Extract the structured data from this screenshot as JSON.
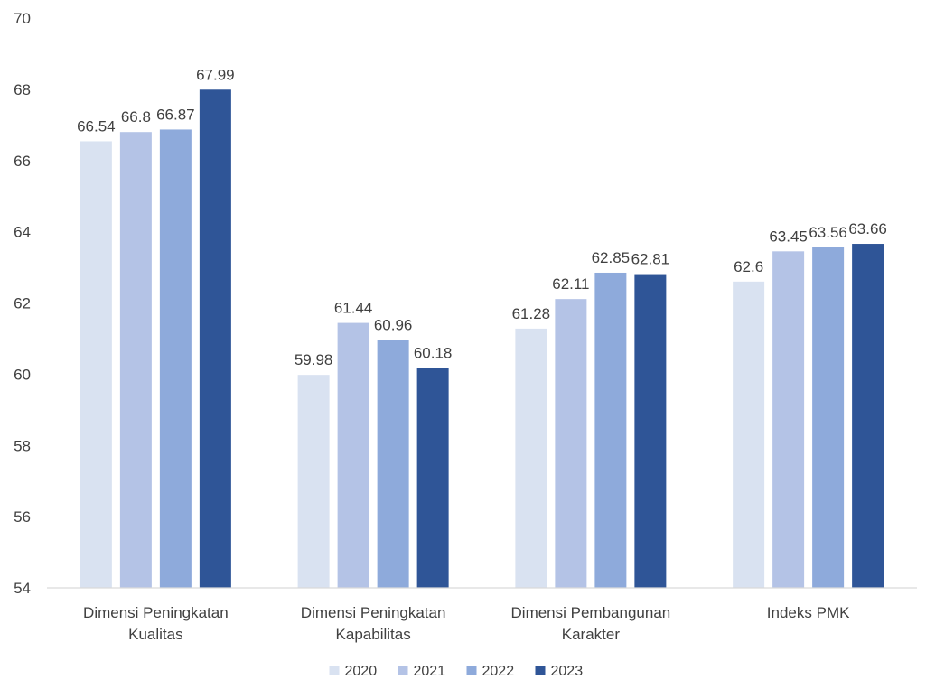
{
  "chart_data": {
    "type": "bar",
    "title": "",
    "xlabel": "",
    "ylabel": "",
    "ylim": [
      54,
      70
    ],
    "yticks": [
      54,
      56,
      58,
      60,
      62,
      64,
      66,
      68,
      70
    ],
    "grid": false,
    "legend_position": "bottom",
    "categories": [
      [
        "Dimensi Peningkatan",
        "Kualitas"
      ],
      [
        "Dimensi Peningkatan",
        "Kapabilitas"
      ],
      [
        "Dimensi Pembangunan",
        "Karakter"
      ],
      [
        "Indeks PMK"
      ]
    ],
    "series": [
      {
        "name": "2020",
        "color": "#d9e2f1",
        "values": [
          66.54,
          59.98,
          61.28,
          62.6
        ]
      },
      {
        "name": "2021",
        "color": "#b4c3e6",
        "values": [
          66.8,
          61.44,
          62.11,
          63.45
        ]
      },
      {
        "name": "2022",
        "color": "#8eaadb",
        "values": [
          66.87,
          60.96,
          62.85,
          63.56
        ]
      },
      {
        "name": "2023",
        "color": "#2f5597",
        "values": [
          67.99,
          60.18,
          62.81,
          63.66
        ]
      }
    ]
  }
}
